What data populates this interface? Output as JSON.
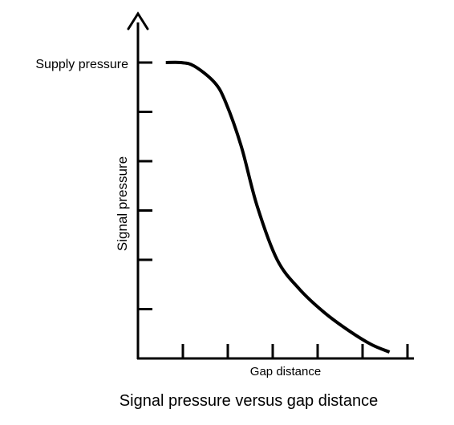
{
  "chart_data": {
    "type": "line",
    "title": "Signal pressure versus gap distance",
    "xlabel": "Gap distance",
    "ylabel": "Signal pressure",
    "y_axis_annotation": "Supply pressure",
    "xlim": [
      0,
      6
    ],
    "ylim": [
      0,
      6
    ],
    "x_tick_count": 6,
    "y_tick_count": 6,
    "grid": false,
    "legend": "none",
    "x": [
      0.62,
      0.95,
      1.25,
      1.7,
      1.95,
      2.3,
      2.65,
      3.1,
      3.6,
      4.15,
      4.7,
      5.2,
      5.6
    ],
    "y": [
      6.0,
      6.0,
      5.93,
      5.6,
      5.2,
      4.3,
      3.1,
      2.0,
      1.4,
      0.93,
      0.56,
      0.28,
      0.13
    ],
    "colors": {
      "line": "#000000",
      "axis": "#000000"
    }
  }
}
